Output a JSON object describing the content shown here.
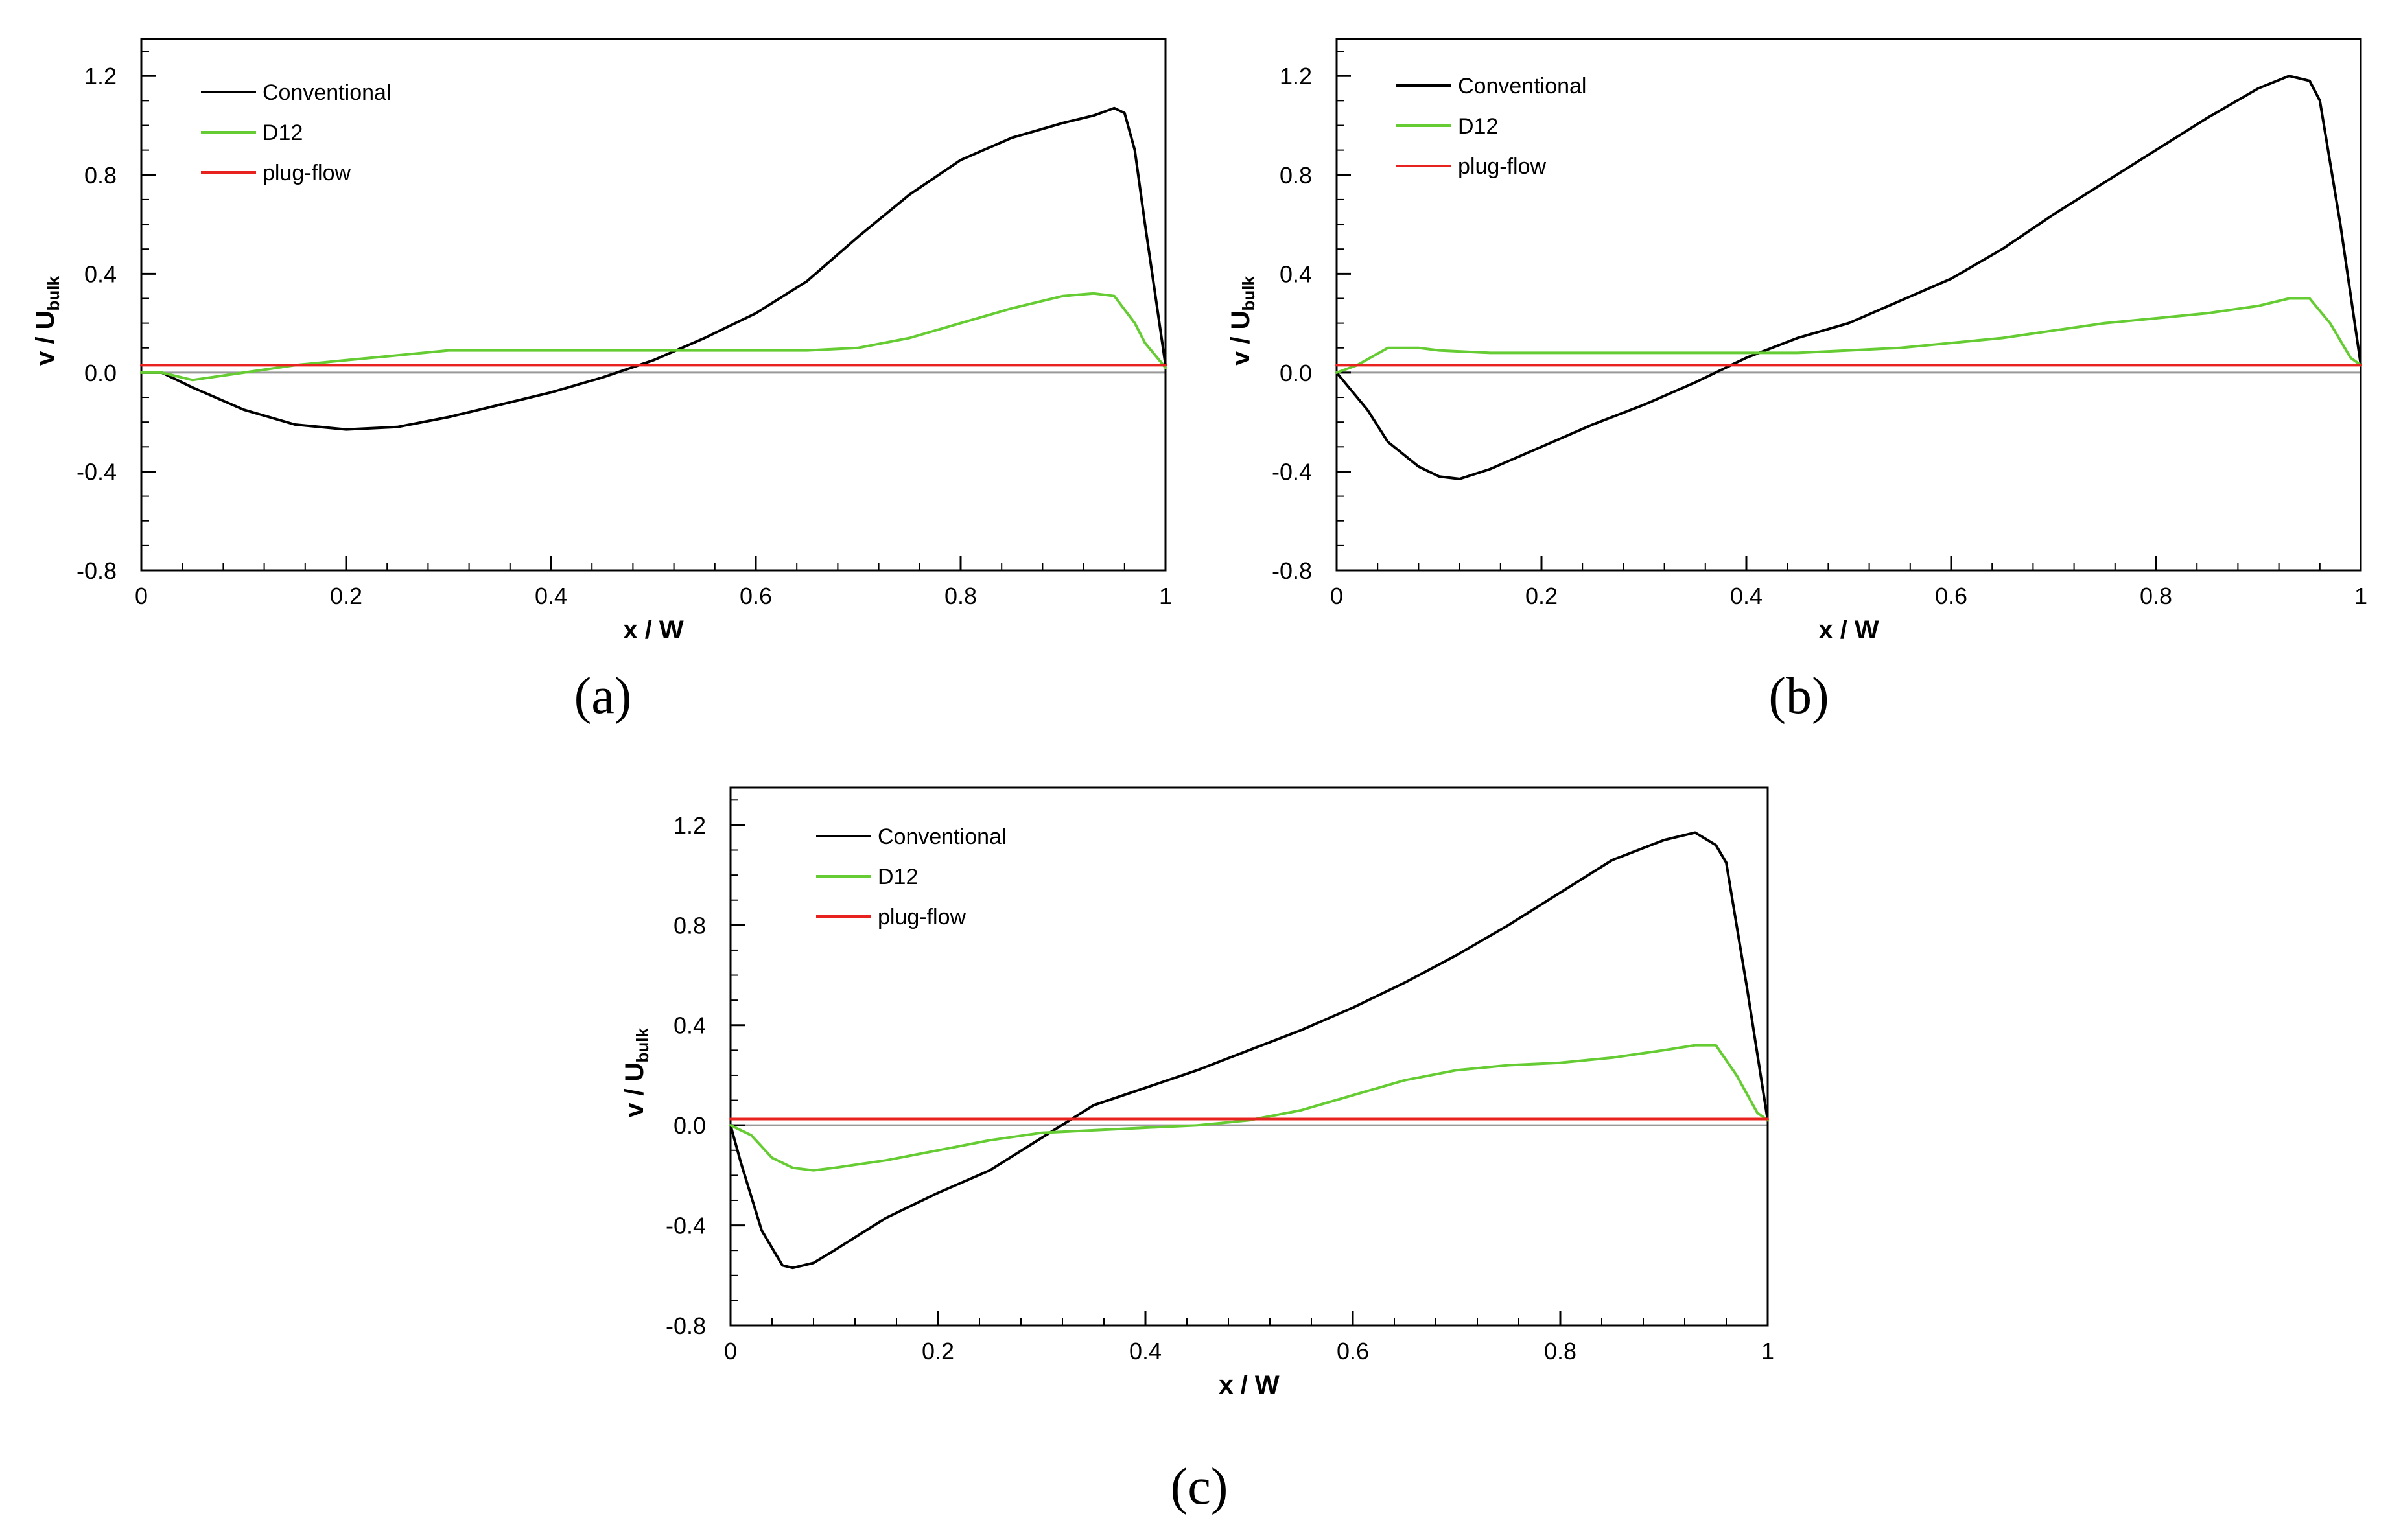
{
  "chart_data": [
    {
      "type": "line",
      "panel": "(a)",
      "xlabel": "x / W",
      "ylabel_main": "v / U",
      "ylabel_sub": "bulk",
      "xlim": [
        0,
        1
      ],
      "ylim": [
        -0.8,
        1.35
      ],
      "xticks": [
        "0",
        "0.2",
        "0.4",
        "0.6",
        "0.8",
        "1"
      ],
      "yticks": [
        "-0.8",
        "-0.4",
        "0.0",
        "0.4",
        "0.8",
        "1.2"
      ],
      "legend_position": "top-left",
      "series": [
        {
          "name": "Conventional",
          "color": "#000000",
          "x": [
            0,
            0.02,
            0.05,
            0.1,
            0.15,
            0.2,
            0.25,
            0.3,
            0.35,
            0.4,
            0.45,
            0.5,
            0.55,
            0.6,
            0.65,
            0.7,
            0.75,
            0.8,
            0.85,
            0.9,
            0.93,
            0.95,
            0.96,
            0.97,
            0.98,
            1.0
          ],
          "y": [
            0.0,
            0.0,
            -0.06,
            -0.15,
            -0.21,
            -0.23,
            -0.22,
            -0.18,
            -0.13,
            -0.08,
            -0.02,
            0.05,
            0.14,
            0.24,
            0.37,
            0.55,
            0.72,
            0.86,
            0.95,
            1.01,
            1.04,
            1.07,
            1.05,
            0.9,
            0.6,
            0.03
          ]
        },
        {
          "name": "D12",
          "color": "#66cc33",
          "x": [
            0,
            0.02,
            0.05,
            0.1,
            0.15,
            0.2,
            0.25,
            0.3,
            0.35,
            0.4,
            0.45,
            0.5,
            0.55,
            0.6,
            0.65,
            0.7,
            0.75,
            0.8,
            0.85,
            0.9,
            0.93,
            0.95,
            0.97,
            0.98,
            1.0
          ],
          "y": [
            0.0,
            0.0,
            -0.03,
            0.0,
            0.03,
            0.05,
            0.07,
            0.09,
            0.09,
            0.09,
            0.09,
            0.09,
            0.09,
            0.09,
            0.09,
            0.1,
            0.14,
            0.2,
            0.26,
            0.31,
            0.32,
            0.31,
            0.2,
            0.12,
            0.02
          ]
        },
        {
          "name": "plug-flow",
          "color": "#e8231f",
          "x": [
            0,
            1
          ],
          "y": [
            0.03,
            0.03
          ]
        }
      ]
    },
    {
      "type": "line",
      "panel": "(b)",
      "xlabel": "x / W",
      "ylabel_main": "v / U",
      "ylabel_sub": "bulk",
      "xlim": [
        0,
        1
      ],
      "ylim": [
        -0.8,
        1.35
      ],
      "xticks": [
        "0",
        "0.2",
        "0.4",
        "0.6",
        "0.8",
        "1"
      ],
      "yticks": [
        "-0.8",
        "-0.4",
        "0.0",
        "0.4",
        "0.8",
        "1.2"
      ],
      "legend_position": "top-left",
      "series": [
        {
          "name": "Conventional",
          "color": "#000000",
          "x": [
            0,
            0.01,
            0.03,
            0.05,
            0.08,
            0.1,
            0.12,
            0.15,
            0.2,
            0.25,
            0.3,
            0.35,
            0.4,
            0.45,
            0.5,
            0.55,
            0.6,
            0.65,
            0.7,
            0.75,
            0.8,
            0.85,
            0.9,
            0.93,
            0.95,
            0.96,
            0.98,
            1.0
          ],
          "y": [
            0.0,
            -0.05,
            -0.15,
            -0.28,
            -0.38,
            -0.42,
            -0.43,
            -0.39,
            -0.3,
            -0.21,
            -0.13,
            -0.04,
            0.06,
            0.14,
            0.2,
            0.29,
            0.38,
            0.5,
            0.64,
            0.77,
            0.9,
            1.03,
            1.15,
            1.2,
            1.18,
            1.1,
            0.6,
            0.03
          ]
        },
        {
          "name": "D12",
          "color": "#66cc33",
          "x": [
            0,
            0.02,
            0.05,
            0.08,
            0.1,
            0.15,
            0.2,
            0.25,
            0.3,
            0.35,
            0.4,
            0.45,
            0.5,
            0.55,
            0.6,
            0.65,
            0.7,
            0.75,
            0.8,
            0.85,
            0.9,
            0.93,
            0.95,
            0.97,
            0.99,
            1.0
          ],
          "y": [
            0.0,
            0.03,
            0.1,
            0.1,
            0.09,
            0.08,
            0.08,
            0.08,
            0.08,
            0.08,
            0.08,
            0.08,
            0.09,
            0.1,
            0.12,
            0.14,
            0.17,
            0.2,
            0.22,
            0.24,
            0.27,
            0.3,
            0.3,
            0.2,
            0.06,
            0.03
          ]
        },
        {
          "name": "plug-flow",
          "color": "#e8231f",
          "x": [
            0,
            1
          ],
          "y": [
            0.03,
            0.03
          ]
        }
      ]
    },
    {
      "type": "line",
      "panel": "(c)",
      "xlabel": "x / W",
      "ylabel_main": "v / U",
      "ylabel_sub": "bulk",
      "xlim": [
        0,
        1
      ],
      "ylim": [
        -0.8,
        1.35
      ],
      "xticks": [
        "0",
        "0.2",
        "0.4",
        "0.6",
        "0.8",
        "1"
      ],
      "yticks": [
        "-0.8",
        "-0.4",
        "0.0",
        "0.4",
        "0.8",
        "1.2"
      ],
      "legend_position": "top-left",
      "series": [
        {
          "name": "Conventional",
          "color": "#000000",
          "x": [
            0,
            0.01,
            0.03,
            0.05,
            0.06,
            0.08,
            0.1,
            0.15,
            0.2,
            0.25,
            0.3,
            0.35,
            0.4,
            0.45,
            0.5,
            0.55,
            0.6,
            0.65,
            0.7,
            0.75,
            0.8,
            0.85,
            0.9,
            0.93,
            0.95,
            0.96,
            0.98,
            1.0
          ],
          "y": [
            0.0,
            -0.15,
            -0.42,
            -0.56,
            -0.57,
            -0.55,
            -0.5,
            -0.37,
            -0.27,
            -0.18,
            -0.05,
            0.08,
            0.15,
            0.22,
            0.3,
            0.38,
            0.47,
            0.57,
            0.68,
            0.8,
            0.93,
            1.06,
            1.14,
            1.17,
            1.12,
            1.05,
            0.55,
            0.02
          ]
        },
        {
          "name": "D12",
          "color": "#66cc33",
          "x": [
            0,
            0.02,
            0.04,
            0.06,
            0.08,
            0.1,
            0.15,
            0.2,
            0.25,
            0.3,
            0.35,
            0.4,
            0.45,
            0.5,
            0.55,
            0.6,
            0.65,
            0.7,
            0.75,
            0.8,
            0.85,
            0.9,
            0.93,
            0.95,
            0.97,
            0.99,
            1.0
          ],
          "y": [
            0.0,
            -0.04,
            -0.13,
            -0.17,
            -0.18,
            -0.17,
            -0.14,
            -0.1,
            -0.06,
            -0.03,
            -0.02,
            -0.01,
            0.0,
            0.02,
            0.06,
            0.12,
            0.18,
            0.22,
            0.24,
            0.25,
            0.27,
            0.3,
            0.32,
            0.32,
            0.2,
            0.05,
            0.02
          ]
        },
        {
          "name": "plug-flow",
          "color": "#e8231f",
          "x": [
            0,
            1
          ],
          "y": [
            0.025,
            0.025
          ]
        }
      ]
    }
  ]
}
